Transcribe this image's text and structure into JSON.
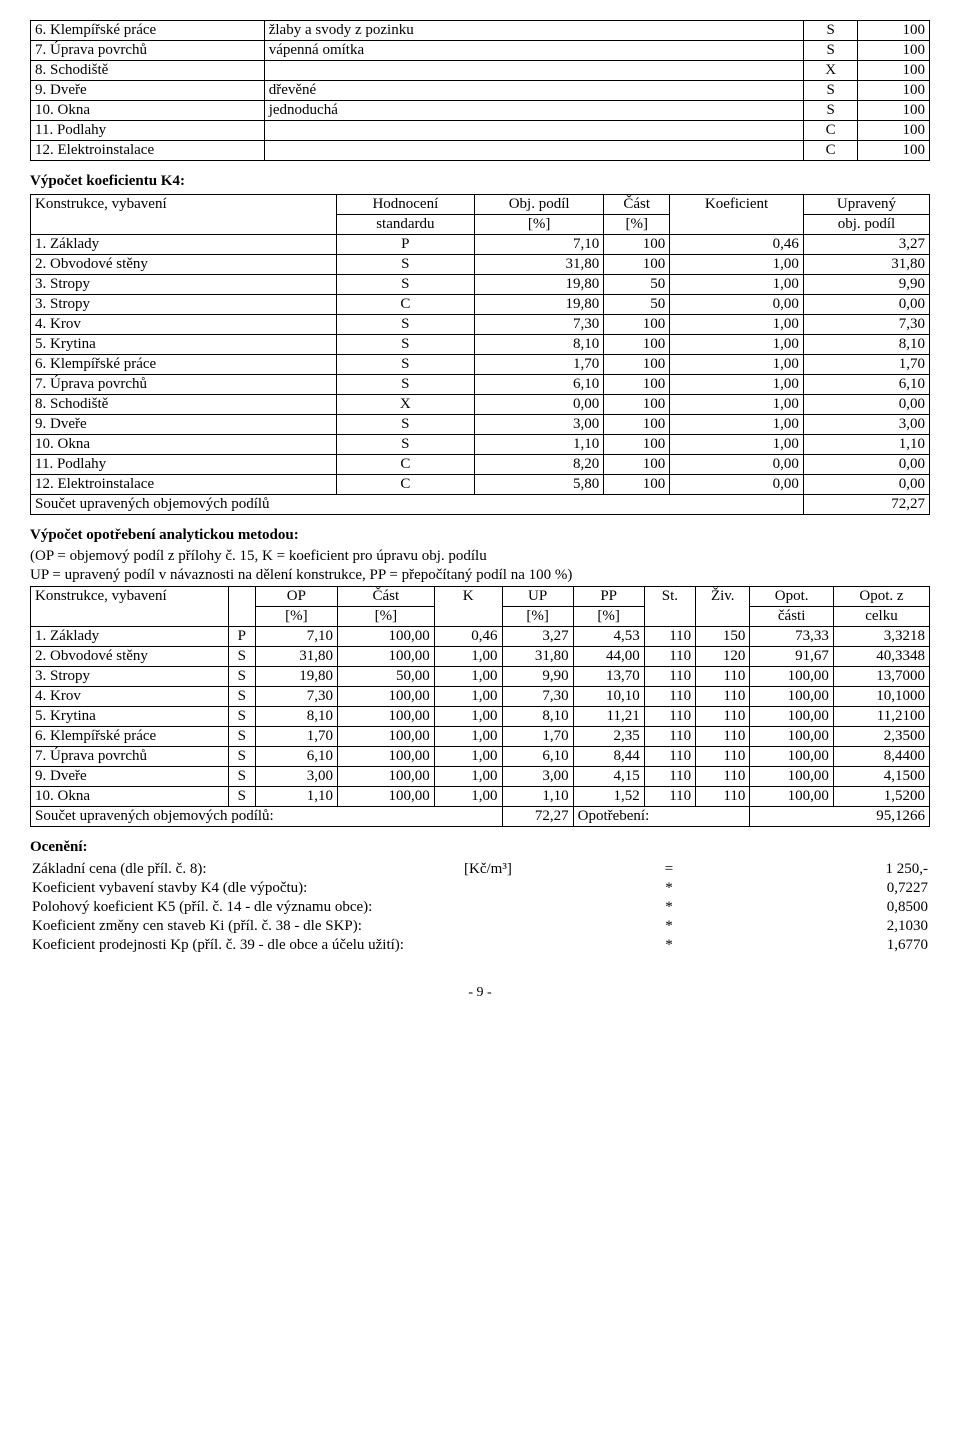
{
  "table1": {
    "rows": [
      {
        "label": "6. Klempířské práce",
        "desc": "žlaby a svody z pozinku",
        "grade": "S",
        "pct": "100"
      },
      {
        "label": "7. Úprava povrchů",
        "desc": "vápenná omítka",
        "grade": "S",
        "pct": "100"
      },
      {
        "label": "8. Schodiště",
        "desc": "",
        "grade": "X",
        "pct": "100"
      },
      {
        "label": "9. Dveře",
        "desc": "dřevěné",
        "grade": "S",
        "pct": "100"
      },
      {
        "label": "10. Okna",
        "desc": "jednoduchá",
        "grade": "S",
        "pct": "100"
      },
      {
        "label": "11. Podlahy",
        "desc": "",
        "grade": "C",
        "pct": "100"
      },
      {
        "label": "12. Elektroinstalace",
        "desc": "",
        "grade": "C",
        "pct": "100"
      }
    ]
  },
  "k4_title": "Výpočet koeficientu K4:",
  "k4_headers": {
    "c1": "Konstrukce, vybavení",
    "c2a": "Hodnocení",
    "c2b": "standardu",
    "c3a": "Obj. podíl",
    "c3b": "[%]",
    "c4a": "Část",
    "c4b": "[%]",
    "c5": "Koeficient",
    "c6a": "Upravený",
    "c6b": "obj. podíl"
  },
  "k4_rows": [
    {
      "label": "1. Základy",
      "g": "P",
      "op": "7,10",
      "cast": "100",
      "k": "0,46",
      "up": "3,27"
    },
    {
      "label": "2. Obvodové stěny",
      "g": "S",
      "op": "31,80",
      "cast": "100",
      "k": "1,00",
      "up": "31,80"
    },
    {
      "label": "3. Stropy",
      "g": "S",
      "op": "19,80",
      "cast": "50",
      "k": "1,00",
      "up": "9,90"
    },
    {
      "label": "3. Stropy",
      "g": "C",
      "op": "19,80",
      "cast": "50",
      "k": "0,00",
      "up": "0,00"
    },
    {
      "label": "4. Krov",
      "g": "S",
      "op": "7,30",
      "cast": "100",
      "k": "1,00",
      "up": "7,30"
    },
    {
      "label": "5. Krytina",
      "g": "S",
      "op": "8,10",
      "cast": "100",
      "k": "1,00",
      "up": "8,10"
    },
    {
      "label": "6. Klempířské práce",
      "g": "S",
      "op": "1,70",
      "cast": "100",
      "k": "1,00",
      "up": "1,70"
    },
    {
      "label": "7. Úprava povrchů",
      "g": "S",
      "op": "6,10",
      "cast": "100",
      "k": "1,00",
      "up": "6,10"
    },
    {
      "label": "8. Schodiště",
      "g": "X",
      "op": "0,00",
      "cast": "100",
      "k": "1,00",
      "up": "0,00"
    },
    {
      "label": "9. Dveře",
      "g": "S",
      "op": "3,00",
      "cast": "100",
      "k": "1,00",
      "up": "3,00"
    },
    {
      "label": "10. Okna",
      "g": "S",
      "op": "1,10",
      "cast": "100",
      "k": "1,00",
      "up": "1,10"
    },
    {
      "label": "11. Podlahy",
      "g": "C",
      "op": "8,20",
      "cast": "100",
      "k": "0,00",
      "up": "0,00"
    },
    {
      "label": "12. Elektroinstalace",
      "g": "C",
      "op": "5,80",
      "cast": "100",
      "k": "0,00",
      "up": "0,00"
    }
  ],
  "k4_sum_label": "Součet upravených objemových podílů",
  "k4_sum_val": "72,27",
  "opot_title": "Výpočet opotřebení analytickou metodou:",
  "opot_intro1": "(OP = objemový podíl z přílohy č. 15, K = koeficient pro úpravu obj. podílu",
  "opot_intro2": "UP = upravený podíl v návaznosti na dělení konstrukce, PP = přepočítaný podíl na 100 %)",
  "opot_headers": {
    "c1": "Konstrukce, vybavení",
    "c2": "",
    "c3a": "OP",
    "c3b": "[%]",
    "c4a": "Část",
    "c4b": "[%]",
    "c5": "K",
    "c6a": "UP",
    "c6b": "[%]",
    "c7a": "PP",
    "c7b": "[%]",
    "c8": "St.",
    "c9": "Živ.",
    "c10a": "Opot.",
    "c10b": "části",
    "c11a": "Opot. z",
    "c11b": "celku"
  },
  "opot_rows": [
    {
      "label": "1. Základy",
      "g": "P",
      "op": "7,10",
      "cast": "100,00",
      "k": "0,46",
      "up": "3,27",
      "pp": "4,53",
      "st": "110",
      "ziv": "150",
      "oc": "73,33",
      "oz": "3,3218"
    },
    {
      "label": "2. Obvodové stěny",
      "g": "S",
      "op": "31,80",
      "cast": "100,00",
      "k": "1,00",
      "up": "31,80",
      "pp": "44,00",
      "st": "110",
      "ziv": "120",
      "oc": "91,67",
      "oz": "40,3348"
    },
    {
      "label": "3. Stropy",
      "g": "S",
      "op": "19,80",
      "cast": "50,00",
      "k": "1,00",
      "up": "9,90",
      "pp": "13,70",
      "st": "110",
      "ziv": "110",
      "oc": "100,00",
      "oz": "13,7000"
    },
    {
      "label": "4. Krov",
      "g": "S",
      "op": "7,30",
      "cast": "100,00",
      "k": "1,00",
      "up": "7,30",
      "pp": "10,10",
      "st": "110",
      "ziv": "110",
      "oc": "100,00",
      "oz": "10,1000"
    },
    {
      "label": "5. Krytina",
      "g": "S",
      "op": "8,10",
      "cast": "100,00",
      "k": "1,00",
      "up": "8,10",
      "pp": "11,21",
      "st": "110",
      "ziv": "110",
      "oc": "100,00",
      "oz": "11,2100"
    },
    {
      "label": "6. Klempířské práce",
      "g": "S",
      "op": "1,70",
      "cast": "100,00",
      "k": "1,00",
      "up": "1,70",
      "pp": "2,35",
      "st": "110",
      "ziv": "110",
      "oc": "100,00",
      "oz": "2,3500"
    },
    {
      "label": "7. Úprava povrchů",
      "g": "S",
      "op": "6,10",
      "cast": "100,00",
      "k": "1,00",
      "up": "6,10",
      "pp": "8,44",
      "st": "110",
      "ziv": "110",
      "oc": "100,00",
      "oz": "8,4400"
    },
    {
      "label": "9. Dveře",
      "g": "S",
      "op": "3,00",
      "cast": "100,00",
      "k": "1,00",
      "up": "3,00",
      "pp": "4,15",
      "st": "110",
      "ziv": "110",
      "oc": "100,00",
      "oz": "4,1500"
    },
    {
      "label": "10. Okna",
      "g": "S",
      "op": "1,10",
      "cast": "100,00",
      "k": "1,00",
      "up": "1,10",
      "pp": "1,52",
      "st": "110",
      "ziv": "110",
      "oc": "100,00",
      "oz": "1,5200"
    }
  ],
  "opot_sum_label": "Součet upravených objemových podílů:",
  "opot_sum_val": "72,27",
  "opot_sum_label2": "Opotřebení:",
  "opot_sum_val2": "95,1266",
  "ocen_title": "Ocenění:",
  "ocen_rows": [
    {
      "label": "Základní cena (dle příl. č. 8):",
      "unit": "[Kč/m³]",
      "sym": "=",
      "val": "1 250,-"
    },
    {
      "label": "Koeficient vybavení stavby K4 (dle výpočtu):",
      "unit": "",
      "sym": "*",
      "val": "0,7227"
    },
    {
      "label": "Polohový koeficient K5 (příl. č. 14 - dle významu obce):",
      "unit": "",
      "sym": "*",
      "val": "0,8500"
    },
    {
      "label": "Koeficient změny cen staveb Ki (příl. č. 38 - dle SKP):",
      "unit": "",
      "sym": "*",
      "val": "2,1030"
    },
    {
      "label": "Koeficient prodejnosti Kp (příl. č. 39 - dle obce a účelu užití):",
      "unit": "",
      "sym": "*",
      "val": "1,6770"
    }
  ],
  "page_num": "- 9 -"
}
